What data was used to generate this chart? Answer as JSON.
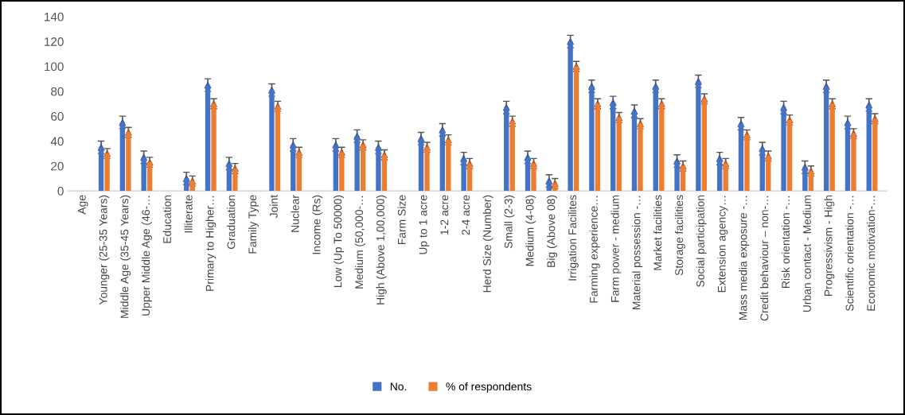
{
  "chart_data": {
    "type": "bar",
    "categories": [
      "Age",
      "Younger (25-35 Years)",
      "Middle Age (35-45 Years)",
      "Upper Middle Age (46-…",
      "Education",
      "Illiterate",
      "Primary to Higher…",
      "Graduation",
      "Family Type",
      "Joint",
      "Nuclear",
      "Income (Rs)",
      "Low (Up To 50000)",
      "Medium (50,000-…",
      "High (Above 1,00,000)",
      "Farm Size",
      "Up to 1 acre",
      "1-2 acre",
      "2-4 acre",
      "Herd Size (Number)",
      "Small (2-3)",
      "Medium (4-08)",
      "Big (Above 08)",
      "Irrigation Facilites",
      "Farming experience…",
      "Farm power - medium",
      "Material possession -…",
      "Market facilities",
      "Storage facilities",
      "Social participation",
      "Extension agency…",
      "Mass media exposure -…",
      "Credit behaviour – non-…",
      "Risk orientation -…",
      "Urban contact - Medium",
      "Progressivism - High",
      "Scientific orientation -…",
      "Economic motivation-…"
    ],
    "series": [
      {
        "name": "No.",
        "color": "#4472c4",
        "values": [
          null,
          35,
          55,
          27,
          null,
          10,
          85,
          22,
          null,
          81,
          37,
          null,
          37,
          44,
          35,
          null,
          42,
          49,
          26,
          null,
          67,
          27,
          8,
          120,
          84,
          71,
          64,
          84,
          24,
          88,
          26,
          54,
          34,
          67,
          19,
          84,
          55,
          69
        ],
        "errors": [
          null,
          5,
          5,
          5,
          null,
          5,
          5,
          5,
          null,
          5,
          5,
          null,
          5,
          5,
          5,
          null,
          5,
          5,
          5,
          null,
          5,
          5,
          5,
          5,
          5,
          5,
          5,
          5,
          5,
          5,
          5,
          5,
          5,
          5,
          5,
          5,
          5,
          5
        ]
      },
      {
        "name": "% of respondents",
        "color": "#ed7d31",
        "values": [
          null,
          30,
          47,
          23,
          null,
          8,
          70,
          18,
          null,
          68,
          31,
          null,
          31,
          37,
          29,
          null,
          35,
          41,
          22,
          null,
          56,
          22,
          6,
          100,
          70,
          59,
          54,
          70,
          20,
          74,
          22,
          45,
          28,
          57,
          16,
          70,
          46,
          58
        ],
        "errors": [
          null,
          4,
          4,
          4,
          null,
          4,
          4,
          4,
          null,
          4,
          4,
          null,
          4,
          4,
          4,
          null,
          4,
          4,
          4,
          null,
          4,
          4,
          4,
          4,
          4,
          4,
          4,
          4,
          4,
          4,
          4,
          4,
          4,
          4,
          4,
          4,
          4,
          4
        ]
      }
    ],
    "ylim": [
      0,
      140
    ],
    "yticks": [
      0,
      20,
      40,
      60,
      80,
      100,
      120,
      140
    ],
    "marker": "triangle",
    "grid": false,
    "legend": "bottom"
  }
}
